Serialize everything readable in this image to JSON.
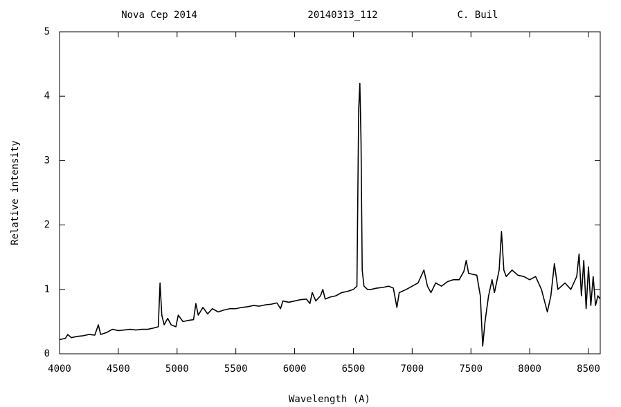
{
  "chart_data": {
    "type": "line",
    "title": [
      "Nova Cep 2014",
      "20140313_112",
      "C. Buil"
    ],
    "x_label": "Wavelength (A)",
    "y_label": "Relative intensity",
    "xlim": [
      4000,
      8600
    ],
    "ylim": [
      0,
      5
    ],
    "xticks": [
      4000,
      4500,
      5000,
      5500,
      6000,
      6500,
      7000,
      7500,
      8000,
      8500
    ],
    "yticks": [
      0,
      1,
      2,
      3,
      4,
      5
    ],
    "grid": false,
    "series": [
      {
        "color": "#000000",
        "x": [
          4000,
          4050,
          4070,
          4100,
          4150,
          4200,
          4250,
          4300,
          4330,
          4350,
          4400,
          4450,
          4500,
          4550,
          4600,
          4650,
          4700,
          4750,
          4800,
          4840,
          4855,
          4870,
          4890,
          4920,
          4950,
          4990,
          5010,
          5050,
          5100,
          5140,
          5160,
          5180,
          5220,
          5260,
          5300,
          5350,
          5400,
          5450,
          5500,
          5550,
          5600,
          5650,
          5700,
          5750,
          5800,
          5850,
          5880,
          5900,
          5950,
          6000,
          6050,
          6100,
          6130,
          6150,
          6180,
          6220,
          6240,
          6260,
          6300,
          6350,
          6400,
          6450,
          6500,
          6530,
          6545,
          6555,
          6565,
          6575,
          6590,
          6620,
          6650,
          6700,
          6750,
          6800,
          6840,
          6870,
          6890,
          6950,
          7000,
          7050,
          7100,
          7130,
          7160,
          7200,
          7250,
          7300,
          7350,
          7400,
          7440,
          7460,
          7480,
          7550,
          7580,
          7600,
          7620,
          7650,
          7680,
          7700,
          7740,
          7760,
          7780,
          7800,
          7850,
          7900,
          7950,
          8000,
          8050,
          8100,
          8150,
          8180,
          8210,
          8240,
          8300,
          8350,
          8400,
          8420,
          8440,
          8460,
          8480,
          8500,
          8520,
          8540,
          8560,
          8580,
          8600
        ],
        "values": [
          0.22,
          0.24,
          0.3,
          0.25,
          0.27,
          0.28,
          0.3,
          0.29,
          0.45,
          0.3,
          0.33,
          0.38,
          0.36,
          0.37,
          0.38,
          0.37,
          0.38,
          0.38,
          0.4,
          0.42,
          1.1,
          0.6,
          0.45,
          0.55,
          0.45,
          0.42,
          0.6,
          0.5,
          0.52,
          0.53,
          0.78,
          0.6,
          0.72,
          0.62,
          0.7,
          0.65,
          0.68,
          0.7,
          0.7,
          0.72,
          0.73,
          0.75,
          0.74,
          0.76,
          0.77,
          0.79,
          0.7,
          0.82,
          0.8,
          0.82,
          0.84,
          0.85,
          0.78,
          0.95,
          0.82,
          0.9,
          1.0,
          0.85,
          0.88,
          0.9,
          0.95,
          0.97,
          1.0,
          1.05,
          3.8,
          4.2,
          3.3,
          1.3,
          1.05,
          1.0,
          1.0,
          1.02,
          1.03,
          1.05,
          1.02,
          0.72,
          0.95,
          1.0,
          1.05,
          1.1,
          1.3,
          1.05,
          0.95,
          1.1,
          1.05,
          1.12,
          1.15,
          1.15,
          1.28,
          1.45,
          1.25,
          1.22,
          0.9,
          0.12,
          0.5,
          0.9,
          1.15,
          0.95,
          1.3,
          1.9,
          1.3,
          1.2,
          1.3,
          1.22,
          1.2,
          1.15,
          1.2,
          1.0,
          0.65,
          0.9,
          1.4,
          1.0,
          1.1,
          1.0,
          1.2,
          1.55,
          0.9,
          1.45,
          0.7,
          1.35,
          0.75,
          1.2,
          0.75,
          0.9,
          0.85
        ]
      }
    ]
  }
}
